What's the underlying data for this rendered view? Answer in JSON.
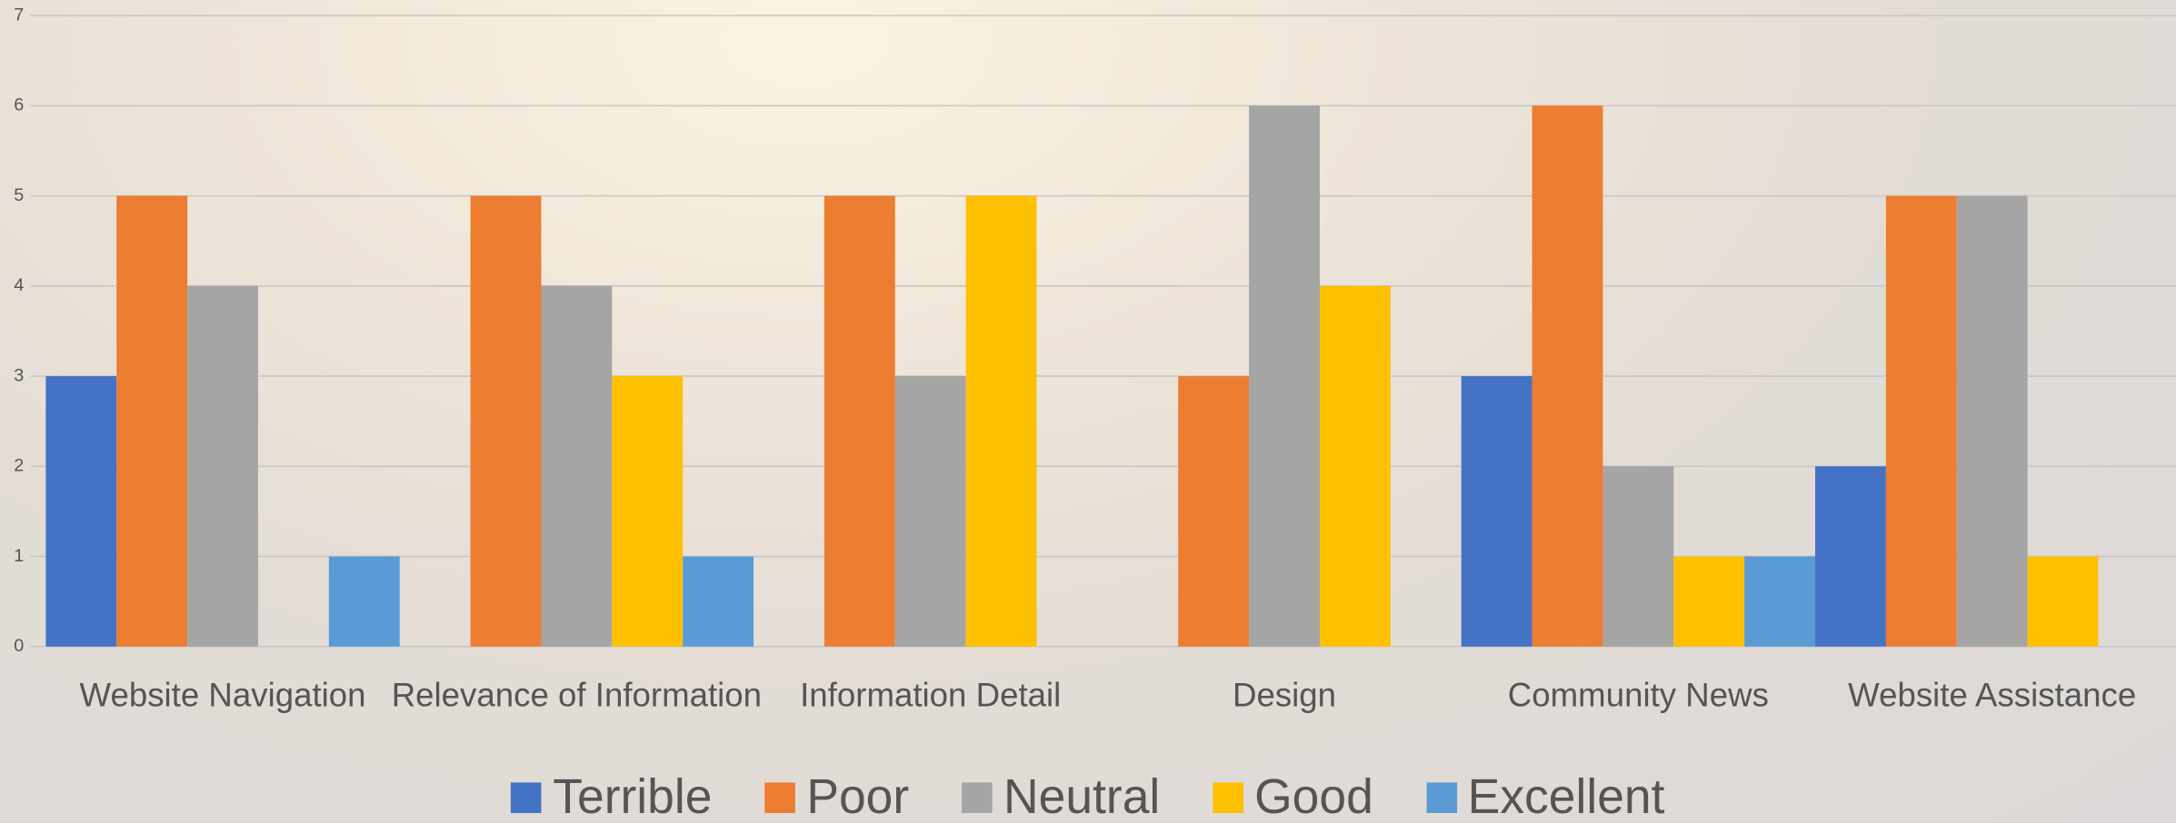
{
  "chart_data": {
    "type": "bar",
    "categories": [
      "Website Navigation",
      "Relevance of Information",
      "Information Detail",
      "Design",
      "Community News",
      "Website Assistance"
    ],
    "series": [
      {
        "name": "Terrible",
        "color": "#4472c4",
        "values": [
          3,
          0,
          0,
          0,
          3,
          2
        ]
      },
      {
        "name": "Poor",
        "color": "#ed7d31",
        "values": [
          5,
          5,
          5,
          3,
          6,
          5
        ]
      },
      {
        "name": "Neutral",
        "color": "#a5a5a5",
        "values": [
          4,
          4,
          3,
          6,
          2,
          5
        ]
      },
      {
        "name": "Good",
        "color": "#ffc000",
        "values": [
          0,
          3,
          5,
          4,
          1,
          1
        ]
      },
      {
        "name": "Excellent",
        "color": "#5b9bd5",
        "values": [
          1,
          1,
          0,
          0,
          1,
          0
        ]
      }
    ],
    "ylim": [
      0,
      7
    ],
    "yticks": [
      0,
      1,
      2,
      3,
      4,
      5,
      6,
      7
    ],
    "grid": true,
    "legend": "bottom"
  }
}
